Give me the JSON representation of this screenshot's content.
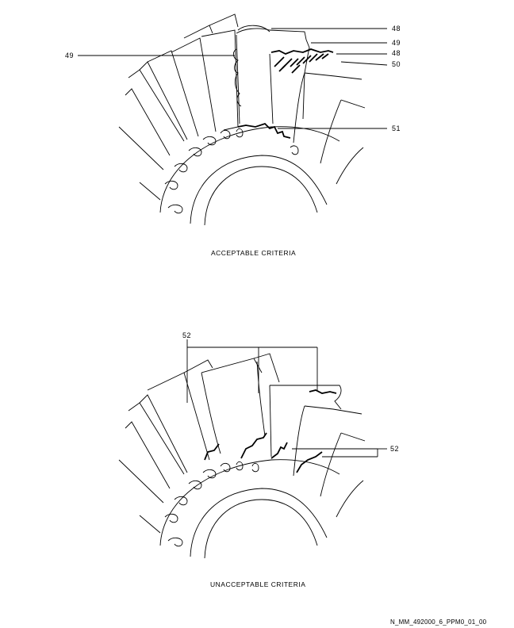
{
  "callouts": {
    "top": [
      "48",
      "49",
      "48",
      "50",
      "49",
      "51"
    ],
    "bottom": [
      "52",
      "52"
    ]
  },
  "captions": {
    "acceptable": "ACCEPTABLE CRITERIA",
    "unacceptable": "UNACCEPTABLE CRITERIA",
    "figure_id": "N_MM_492000_6_PPM0_01_00"
  }
}
